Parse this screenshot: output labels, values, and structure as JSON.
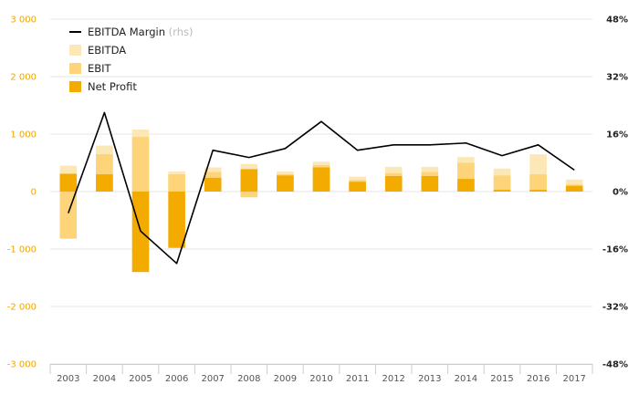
{
  "chart_data": {
    "type": "bar",
    "categories": [
      "2003",
      "2004",
      "2005",
      "2006",
      "2007",
      "2008",
      "2009",
      "2010",
      "2011",
      "2012",
      "2013",
      "2014",
      "2015",
      "2016",
      "2017"
    ],
    "series": [
      {
        "name": "EBITDA",
        "kind": "bar",
        "axis": "left",
        "color": "#fce8b6",
        "values": [
          450,
          800,
          1080,
          350,
          420,
          480,
          350,
          520,
          260,
          430,
          430,
          600,
          400,
          650,
          210
        ]
      },
      {
        "name": "EBIT",
        "kind": "bar",
        "axis": "left",
        "color": "#fdd47a",
        "values": [
          -820,
          650,
          950,
          300,
          340,
          -100,
          300,
          460,
          200,
          320,
          340,
          500,
          280,
          300,
          120
        ]
      },
      {
        "name": "Net Profit",
        "kind": "bar",
        "axis": "left",
        "color": "#f4ab00",
        "values": [
          310,
          300,
          -1400,
          -980,
          240,
          390,
          280,
          420,
          170,
          270,
          270,
          220,
          30,
          30,
          100
        ]
      },
      {
        "name": "EBITDA Margin",
        "kind": "line",
        "axis": "right",
        "color": "#000000",
        "values": [
          -6,
          22,
          -11,
          -20,
          11.5,
          9.5,
          12,
          19.5,
          11.5,
          13,
          13,
          13.5,
          10,
          13,
          6
        ]
      }
    ],
    "y_left": {
      "ticks": [
        -3000,
        -2000,
        -1000,
        0,
        1000,
        2000,
        3000
      ],
      "tick_labels": [
        "-3 000",
        "-2 000",
        "-1 000",
        "0",
        "1 000",
        "2 000",
        "3 000"
      ],
      "ylim": [
        -3000,
        3000
      ]
    },
    "y_right": {
      "ticks": [
        -48,
        -32,
        -16,
        0,
        16,
        32,
        48
      ],
      "tick_labels": [
        "-48%",
        "-32%",
        "-16%",
        "0%",
        "16%",
        "32%",
        "48%"
      ],
      "ylim": [
        -48,
        48
      ]
    },
    "legend": {
      "placement": "top-left",
      "entries": [
        {
          "label": "EBITDA Margin",
          "suffix": "(rhs)",
          "symbol": "line",
          "color": "#000000"
        },
        {
          "label": "EBITDA",
          "symbol": "box",
          "color": "#fce8b6"
        },
        {
          "label": "EBIT",
          "symbol": "box",
          "color": "#fdd47a"
        },
        {
          "label": "Net Profit",
          "symbol": "box",
          "color": "#f4ab00"
        }
      ]
    },
    "grid": true,
    "title": "",
    "xlabel": "",
    "ylabel": ""
  }
}
